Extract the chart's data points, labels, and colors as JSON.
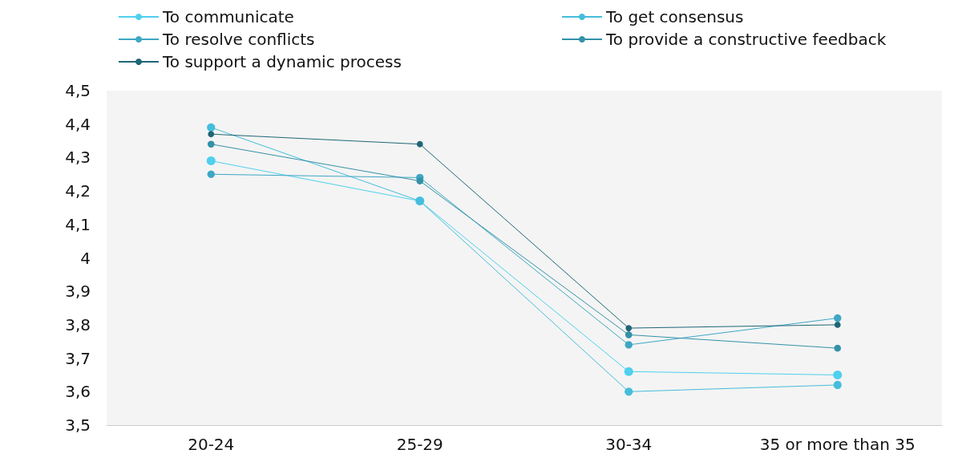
{
  "chart_data": {
    "type": "line",
    "categories": [
      "20-24",
      "25-29",
      "30-34",
      "35 or more than 35"
    ],
    "series": [
      {
        "name": "To communicate",
        "color": "#4fd0ef",
        "values": [
          4.29,
          4.17,
          3.66,
          3.65
        ]
      },
      {
        "name": "To get consensus",
        "color": "#45bddb",
        "values": [
          4.39,
          4.17,
          3.6,
          3.62
        ]
      },
      {
        "name": "To resolve conflicts",
        "color": "#3ea7c4",
        "values": [
          4.25,
          4.24,
          3.74,
          3.82
        ]
      },
      {
        "name": "To provide a constructive feedback",
        "color": "#3491a8",
        "values": [
          4.34,
          4.23,
          3.77,
          3.73
        ]
      },
      {
        "name": "To support a dynamic process",
        "color": "#1f6677",
        "values": [
          4.37,
          4.34,
          3.79,
          3.8
        ]
      }
    ],
    "ylim": [
      3.5,
      4.5
    ],
    "yticks": [
      {
        "value": 3.5,
        "label": "3,5"
      },
      {
        "value": 3.6,
        "label": "3,6"
      },
      {
        "value": 3.7,
        "label": "3,7"
      },
      {
        "value": 3.8,
        "label": "3,8"
      },
      {
        "value": 3.9,
        "label": "3,9"
      },
      {
        "value": 4,
        "label": "4"
      },
      {
        "value": 4.1,
        "label": "4,1"
      },
      {
        "value": 4.2,
        "label": "4,2"
      },
      {
        "value": 4.3,
        "label": "4,3"
      },
      {
        "value": 4.4,
        "label": "4,4"
      },
      {
        "value": 4.5,
        "label": "4,5"
      }
    ],
    "grid": false,
    "legend": "top",
    "marker": "circle",
    "line_style": "solid"
  }
}
